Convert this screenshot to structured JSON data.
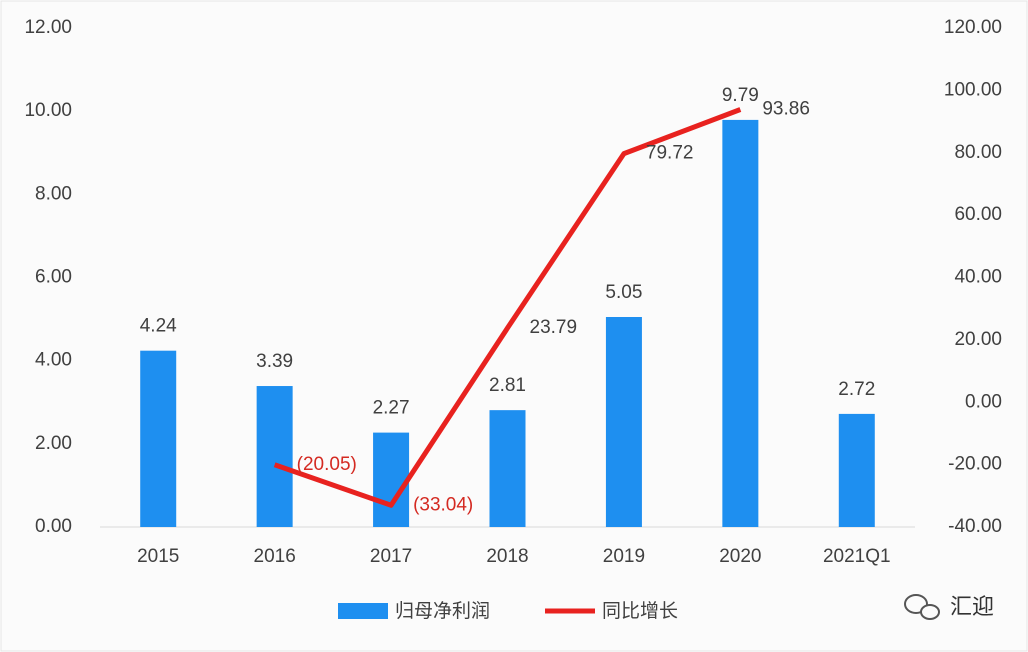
{
  "chart_data": {
    "type": "bar-line",
    "categories": [
      "2015",
      "2016",
      "2017",
      "2018",
      "2019",
      "2020",
      "2021Q1"
    ],
    "series": [
      {
        "name": "归母净利润",
        "type": "bar",
        "color": "#1e8ff0",
        "values": [
          4.24,
          3.39,
          2.27,
          2.81,
          5.05,
          9.79,
          2.72
        ]
      },
      {
        "name": "同比增长",
        "type": "line",
        "axis": "y2",
        "color": "#e8221f",
        "values": [
          null,
          -20.05,
          -33.04,
          23.79,
          79.72,
          93.86,
          null
        ],
        "value_labels": [
          null,
          "(20.05)",
          "(33.04)",
          "23.79",
          "79.72",
          "93.86",
          null
        ]
      }
    ],
    "ylim": [
      0,
      12
    ],
    "yticks": [
      {
        "value": 0,
        "label": "0.00"
      },
      {
        "value": 2,
        "label": "2.00"
      },
      {
        "value": 4,
        "label": "4.00"
      },
      {
        "value": 6,
        "label": "6.00"
      },
      {
        "value": 8,
        "label": "8.00"
      },
      {
        "value": 10,
        "label": "10.00"
      },
      {
        "value": 12,
        "label": "12.00"
      }
    ],
    "y2lim": [
      -40,
      120
    ],
    "y2ticks": [
      {
        "value": -40,
        "label": "-40.00"
      },
      {
        "value": -20,
        "label": "-20.00"
      },
      {
        "value": 0,
        "label": "0.00"
      },
      {
        "value": 20,
        "label": "20.00"
      },
      {
        "value": 40,
        "label": "40.00"
      },
      {
        "value": 60,
        "label": "60.00"
      },
      {
        "value": 80,
        "label": "80.00"
      },
      {
        "value": 100,
        "label": "100.00"
      },
      {
        "value": 120,
        "label": "120.00"
      }
    ],
    "grid": false,
    "legend": "bottom",
    "watermark": "汇迎"
  }
}
